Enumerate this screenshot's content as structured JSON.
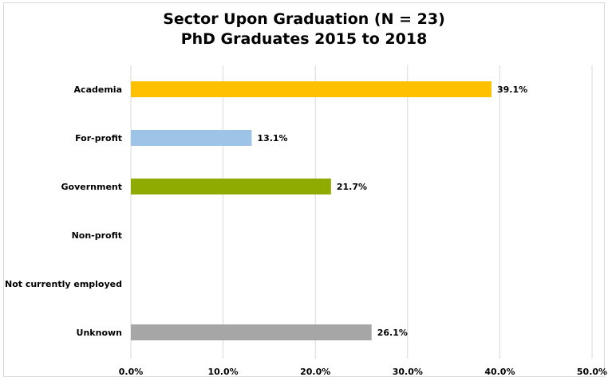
{
  "chart_data": {
    "type": "bar",
    "orientation": "horizontal",
    "title": "Sector Upon Graduation (N = 23)",
    "subtitle": "PhD Graduates 2015 to 2018",
    "xlabel": "",
    "ylabel": "",
    "categories": [
      "Academia",
      "For-profit",
      "Government",
      "Non-profit",
      "Not currently employed",
      "Unknown"
    ],
    "values": [
      39.1,
      13.1,
      21.7,
      0,
      0,
      26.1
    ],
    "data_labels": [
      "39.1%",
      "13.1%",
      "21.7%",
      "",
      "",
      "26.1%"
    ],
    "bar_colors": [
      "#ffc000",
      "#9dc3e6",
      "#8faa00",
      "#ffffff",
      "#ffffff",
      "#a6a6a6"
    ],
    "xlim": [
      0,
      50
    ],
    "x_ticks": [
      0,
      10,
      20,
      30,
      40,
      50
    ],
    "x_tick_labels": [
      "0.0%",
      "10.0%",
      "20.0%",
      "30.0%",
      "40.0%",
      "50.0%"
    ],
    "grid": true,
    "legend": "none"
  },
  "colors": {
    "gridline": "#d9d9d9",
    "border": "#d9d9d9"
  }
}
